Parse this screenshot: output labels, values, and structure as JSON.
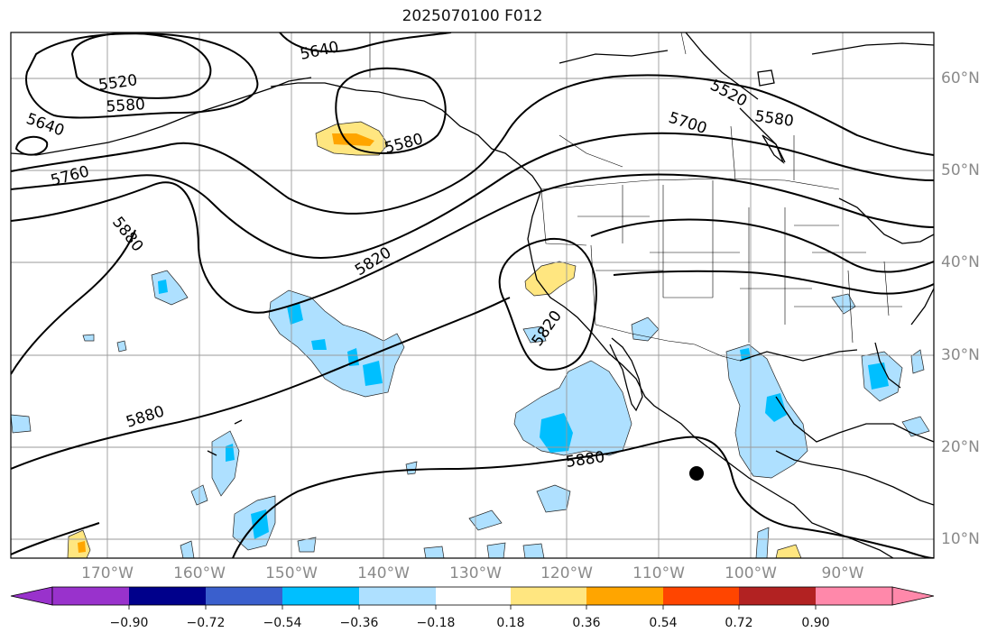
{
  "title": "2025070100 F012",
  "lon_labels": [
    "170°W",
    "160°W",
    "150°W",
    "140°W",
    "130°W",
    "120°W",
    "110°W",
    "100°W",
    "90°W"
  ],
  "lat_labels": [
    "60°N",
    "50°N",
    "40°N",
    "30°N",
    "20°N",
    "10°N"
  ],
  "contour_labels": [
    "5640",
    "5520",
    "5580",
    "5640",
    "5760",
    "5880",
    "5580",
    "5820",
    "5820",
    "5880",
    "5880",
    "5700",
    "5520",
    "5580"
  ],
  "colorbar": {
    "ticks": [
      "−0.90",
      "−0.72",
      "−0.54",
      "−0.36",
      "−0.18",
      "0.18",
      "0.36",
      "0.54",
      "0.72",
      "0.90"
    ],
    "colors": [
      "#9932cc",
      "#00008b",
      "#3a5fcd",
      "#00bfff",
      "#aee0ff",
      "#ffffff",
      "#ffe680",
      "#ffa500",
      "#ff4500",
      "#b22222",
      "#ff88aa"
    ]
  },
  "shading_colors": {
    "light_blue": "#aee0ff",
    "blue": "#00bfff",
    "yellow": "#ffe680",
    "orange": "#ffa500"
  }
}
